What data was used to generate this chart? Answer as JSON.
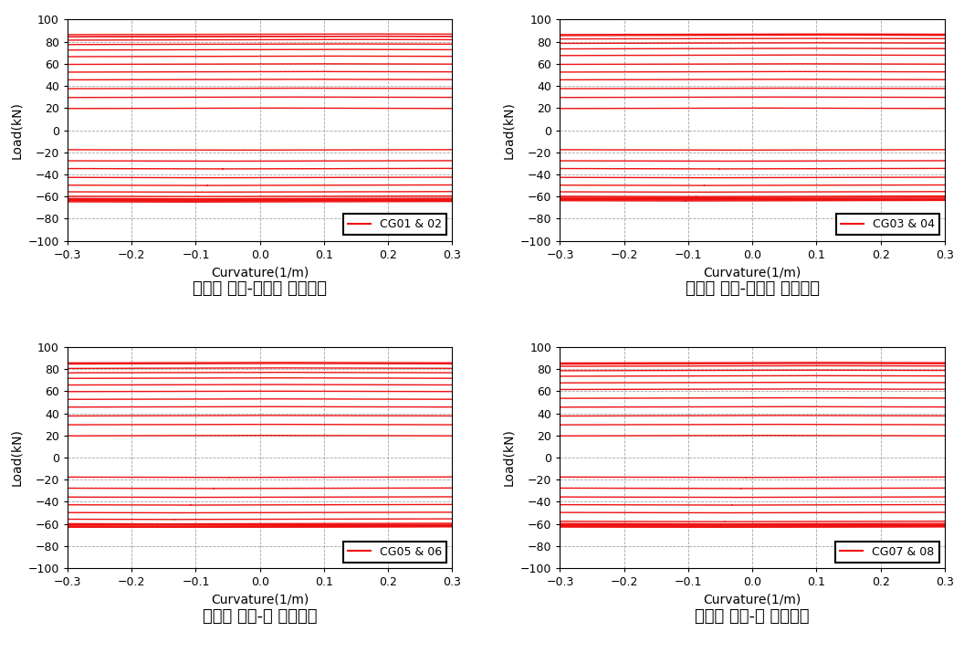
{
  "subplots": [
    {
      "label": "CG01 & 02",
      "subtitle": "〈좌측 기둥-기초판 접합부〉",
      "loops": [
        {
          "xp": 0.03,
          "yp": 20,
          "xn": -0.025,
          "yn": -18,
          "bowing": 0.4
        },
        {
          "xp": 0.05,
          "yp": 30,
          "xn": -0.045,
          "yn": -28,
          "bowing": 0.4
        },
        {
          "xp": 0.065,
          "yp": 38,
          "xn": -0.058,
          "yn": -35,
          "bowing": 0.4
        },
        {
          "xp": 0.08,
          "yp": 46,
          "xn": -0.072,
          "yn": -43,
          "bowing": 0.4
        },
        {
          "xp": 0.092,
          "yp": 53,
          "xn": -0.082,
          "yn": -50,
          "bowing": 0.4
        },
        {
          "xp": 0.103,
          "yp": 60,
          "xn": -0.09,
          "yn": -56,
          "bowing": 0.4
        },
        {
          "xp": 0.115,
          "yp": 67,
          "xn": -0.096,
          "yn": -60,
          "bowing": 0.4
        },
        {
          "xp": 0.127,
          "yp": 73,
          "xn": -0.1,
          "yn": -62,
          "bowing": 0.4
        },
        {
          "xp": 0.14,
          "yp": 78,
          "xn": -0.104,
          "yn": -63,
          "bowing": 0.4
        },
        {
          "xp": 0.155,
          "yp": 82,
          "xn": -0.108,
          "yn": -64,
          "bowing": 0.4
        },
        {
          "xp": 0.17,
          "yp": 85,
          "xn": -0.112,
          "yn": -64,
          "bowing": 0.4
        },
        {
          "xp": 0.185,
          "yp": 87,
          "xn": -0.115,
          "yn": -65,
          "bowing": 0.4
        },
        {
          "xp": 0.2,
          "yp": 85,
          "xn": -0.115,
          "yn": -63,
          "bowing": 0.4
        }
      ]
    },
    {
      "label": "CG03 & 04",
      "subtitle": "〈우측 기둥-기초판 접합부〉",
      "loops": [
        {
          "xp": 0.02,
          "yp": 20,
          "xn": -0.02,
          "yn": -18,
          "bowing": 0.4
        },
        {
          "xp": 0.035,
          "yp": 30,
          "xn": -0.038,
          "yn": -28,
          "bowing": 0.4
        },
        {
          "xp": 0.048,
          "yp": 38,
          "xn": -0.052,
          "yn": -35,
          "bowing": 0.4
        },
        {
          "xp": 0.06,
          "yp": 46,
          "xn": -0.065,
          "yn": -43,
          "bowing": 0.4
        },
        {
          "xp": 0.07,
          "yp": 53,
          "xn": -0.075,
          "yn": -50,
          "bowing": 0.4
        },
        {
          "xp": 0.08,
          "yp": 60,
          "xn": -0.083,
          "yn": -56,
          "bowing": 0.4
        },
        {
          "xp": 0.088,
          "yp": 68,
          "xn": -0.088,
          "yn": -60,
          "bowing": 0.4
        },
        {
          "xp": 0.095,
          "yp": 74,
          "xn": -0.092,
          "yn": -61,
          "bowing": 0.4
        },
        {
          "xp": 0.102,
          "yp": 79,
          "xn": -0.096,
          "yn": -62,
          "bowing": 0.4
        },
        {
          "xp": 0.108,
          "yp": 83,
          "xn": -0.1,
          "yn": -63,
          "bowing": 0.4
        },
        {
          "xp": 0.113,
          "yp": 86,
          "xn": -0.104,
          "yn": -64,
          "bowing": 0.4
        },
        {
          "xp": 0.118,
          "yp": 87,
          "xn": -0.108,
          "yn": -63,
          "bowing": 0.4
        }
      ]
    },
    {
      "label": "CG05 & 06",
      "subtitle": "〈좌측 기둥-보 접합부〉",
      "loops": [
        {
          "xp": 0.01,
          "yp": 20,
          "xn": -0.048,
          "yn": -18,
          "bowing": 0.4
        },
        {
          "xp": 0.015,
          "yp": 30,
          "xn": -0.072,
          "yn": -28,
          "bowing": 0.4
        },
        {
          "xp": 0.018,
          "yp": 38,
          "xn": -0.092,
          "yn": -36,
          "bowing": 0.4
        },
        {
          "xp": 0.02,
          "yp": 46,
          "xn": -0.108,
          "yn": -43,
          "bowing": 0.4
        },
        {
          "xp": 0.022,
          "yp": 53,
          "xn": -0.122,
          "yn": -50,
          "bowing": 0.4
        },
        {
          "xp": 0.025,
          "yp": 60,
          "xn": -0.133,
          "yn": -56,
          "bowing": 0.4
        },
        {
          "xp": 0.027,
          "yp": 66,
          "xn": -0.143,
          "yn": -60,
          "bowing": 0.4
        },
        {
          "xp": 0.029,
          "yp": 72,
          "xn": -0.152,
          "yn": -61,
          "bowing": 0.4
        },
        {
          "xp": 0.032,
          "yp": 77,
          "xn": -0.16,
          "yn": -62,
          "bowing": 0.4
        },
        {
          "xp": 0.034,
          "yp": 81,
          "xn": -0.168,
          "yn": -63,
          "bowing": 0.4
        },
        {
          "xp": 0.037,
          "yp": 85,
          "xn": -0.176,
          "yn": -63,
          "bowing": 0.4
        },
        {
          "xp": 0.04,
          "yp": 86,
          "xn": -0.188,
          "yn": -63,
          "bowing": 0.4
        }
      ]
    },
    {
      "label": "CG07 & 08",
      "subtitle": "〈우측 기둥-보 접합부〉",
      "loops": [
        {
          "xp": 0.028,
          "yp": 20,
          "xn": -0.01,
          "yn": -18,
          "bowing": 0.4
        },
        {
          "xp": 0.042,
          "yp": 30,
          "xn": -0.018,
          "yn": -28,
          "bowing": 0.4
        },
        {
          "xp": 0.053,
          "yp": 38,
          "xn": -0.025,
          "yn": -36,
          "bowing": 0.4
        },
        {
          "xp": 0.064,
          "yp": 46,
          "xn": -0.032,
          "yn": -43,
          "bowing": 0.4
        },
        {
          "xp": 0.074,
          "yp": 54,
          "xn": -0.038,
          "yn": -50,
          "bowing": 0.4
        },
        {
          "xp": 0.083,
          "yp": 62,
          "xn": -0.043,
          "yn": -58,
          "bowing": 0.4
        },
        {
          "xp": 0.09,
          "yp": 68,
          "xn": -0.047,
          "yn": -60,
          "bowing": 0.4
        },
        {
          "xp": 0.097,
          "yp": 74,
          "xn": -0.05,
          "yn": -61,
          "bowing": 0.4
        },
        {
          "xp": 0.103,
          "yp": 79,
          "xn": -0.053,
          "yn": -62,
          "bowing": 0.4
        },
        {
          "xp": 0.108,
          "yp": 83,
          "xn": -0.055,
          "yn": -63,
          "bowing": 0.4
        },
        {
          "xp": 0.113,
          "yp": 86,
          "xn": -0.057,
          "yn": -63,
          "bowing": 0.4
        },
        {
          "xp": 0.117,
          "yp": 85,
          "xn": -0.059,
          "yn": -62,
          "bowing": 0.4
        }
      ]
    }
  ],
  "line_color": "#EE1111",
  "line_width": 1.0,
  "grid_color": "#999999",
  "background_color": "#FFFFFF",
  "tick_label_size": 9,
  "axis_label_size": 10,
  "legend_fontsize": 9,
  "subtitle_fontsize": 13,
  "xlabel": "Curvature(1/m)",
  "ylabel": "Load(kN)",
  "xlim": [
    -0.3,
    0.3
  ],
  "ylim": [
    -100,
    100
  ],
  "xticks": [
    -0.3,
    -0.2,
    -0.1,
    0.0,
    0.1,
    0.2,
    0.3
  ],
  "yticks": [
    -100,
    -80,
    -60,
    -40,
    -20,
    0,
    20,
    40,
    60,
    80,
    100
  ]
}
